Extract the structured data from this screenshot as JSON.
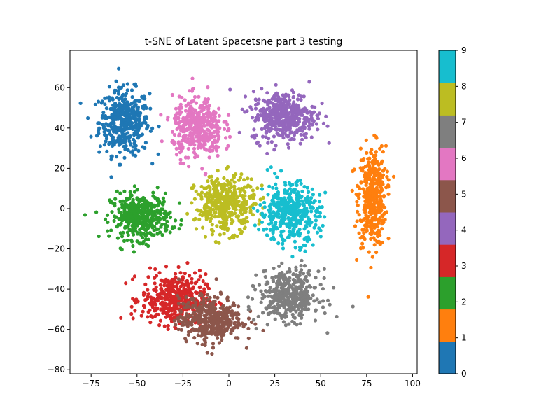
{
  "chart_data": {
    "type": "scatter",
    "title": "t-SNE of Latent Spacetsne part 3 testing",
    "xlabel": "",
    "ylabel": "",
    "xlim": [
      -86.5,
      102.5
    ],
    "ylim": [
      -82.0,
      78.5
    ],
    "xticks": [
      -75,
      -50,
      -25,
      0,
      25,
      50,
      75,
      100
    ],
    "yticks": [
      -80,
      -60,
      -40,
      -20,
      0,
      20,
      40,
      60
    ],
    "xtick_labels": [
      "−75",
      "−50",
      "−25",
      "0",
      "25",
      "50",
      "75",
      "100"
    ],
    "ytick_labels": [
      "−80",
      "−60",
      "−40",
      "−20",
      "0",
      "20",
      "40",
      "60"
    ],
    "grid": false,
    "colormap": "tab10",
    "colorbar": {
      "range": [
        0,
        9
      ],
      "ticks": [
        "0",
        "1",
        "2",
        "3",
        "4",
        "5",
        "6",
        "7",
        "8",
        "9"
      ],
      "colors": [
        "#1f77b4",
        "#ff7f0e",
        "#2ca02c",
        "#d62728",
        "#9467bd",
        "#8c564b",
        "#e377c2",
        "#7f7f7f",
        "#bcbd22",
        "#17becf"
      ]
    },
    "clusters": [
      {
        "label": 0,
        "color": "#1f77b4",
        "center": [
          -57,
          43
        ],
        "spread": [
          11,
          13
        ]
      },
      {
        "label": 1,
        "color": "#ff7f0e",
        "center": [
          78,
          6
        ],
        "spread": [
          6,
          20
        ]
      },
      {
        "label": 2,
        "color": "#2ca02c",
        "center": [
          -48,
          -4
        ],
        "spread": [
          13,
          9
        ]
      },
      {
        "label": 3,
        "color": "#d62728",
        "center": [
          -30,
          -45
        ],
        "spread": [
          14,
          10
        ]
      },
      {
        "label": 4,
        "color": "#9467bd",
        "center": [
          30,
          46
        ],
        "spread": [
          14,
          10
        ]
      },
      {
        "label": 5,
        "color": "#8c564b",
        "center": [
          -10,
          -55
        ],
        "spread": [
          14,
          9
        ]
      },
      {
        "label": 6,
        "color": "#e377c2",
        "center": [
          -17,
          40
        ],
        "spread": [
          11,
          12
        ]
      },
      {
        "label": 7,
        "color": "#7f7f7f",
        "center": [
          33,
          -43
        ],
        "spread": [
          13,
          10
        ]
      },
      {
        "label": 8,
        "color": "#bcbd22",
        "center": [
          -2,
          2
        ],
        "spread": [
          13,
          11
        ]
      },
      {
        "label": 9,
        "color": "#17becf",
        "center": [
          33,
          -2
        ],
        "spread": [
          13,
          12
        ]
      }
    ]
  }
}
